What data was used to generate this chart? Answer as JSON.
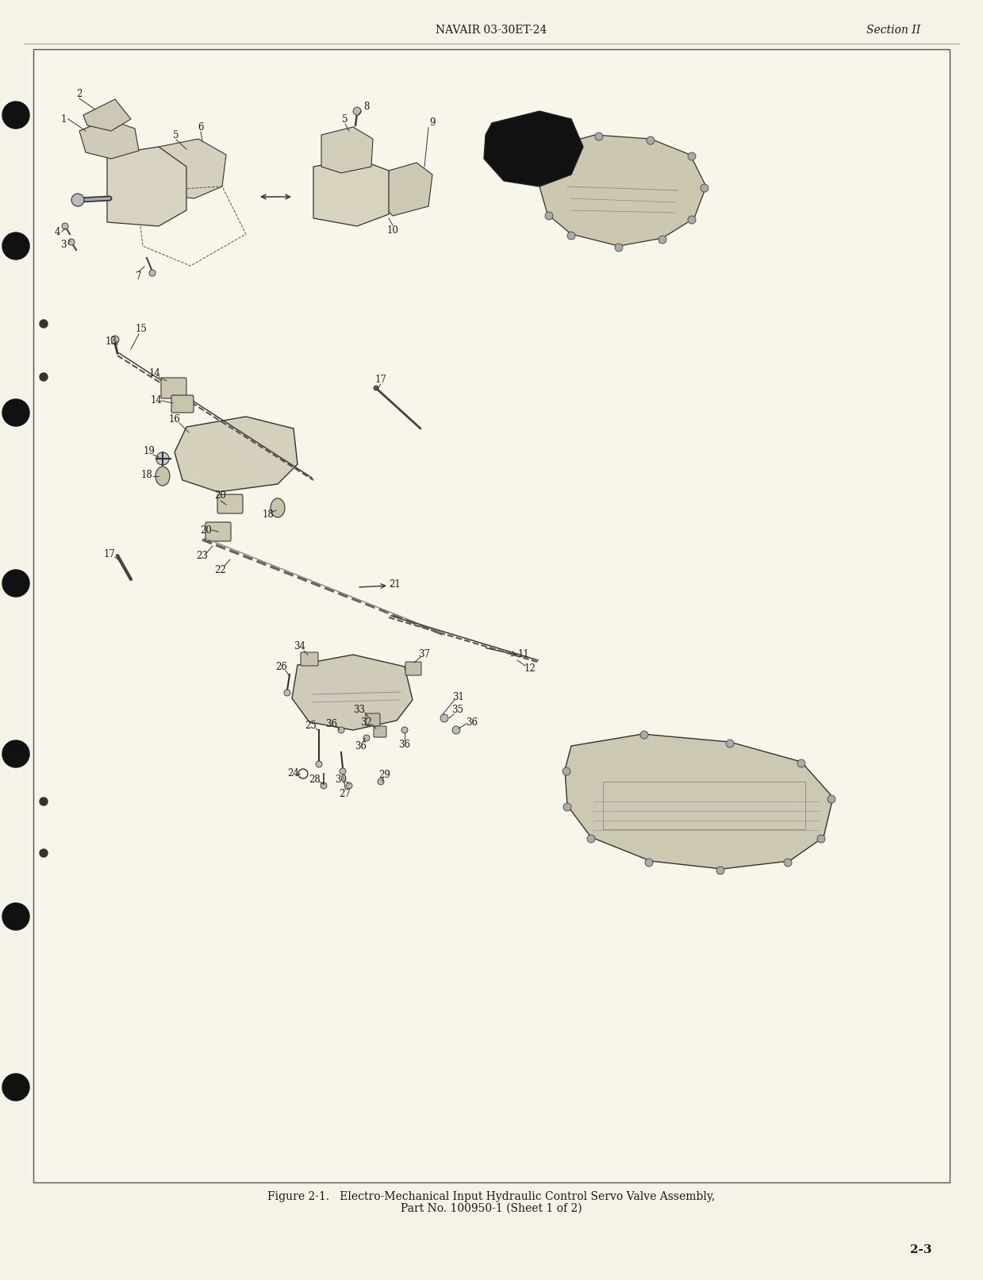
{
  "page_background": "#f5f2e8",
  "content_background": "#f8f5ea",
  "border_color": "#444444",
  "text_color": "#1a1a1a",
  "header_center": "NAVAIR 03-30ET-24",
  "header_right": "Section II",
  "footer_line1": "Figure 2-1.   Electro-Mechanical Input Hydraulic Control Servo Valve Assembly,",
  "footer_line2": "Part No. 100950-1 (Sheet 1 of 2)",
  "page_number": "2-3",
  "header_fontsize": 10,
  "footer_fontsize": 10,
  "page_number_fontsize": 11
}
